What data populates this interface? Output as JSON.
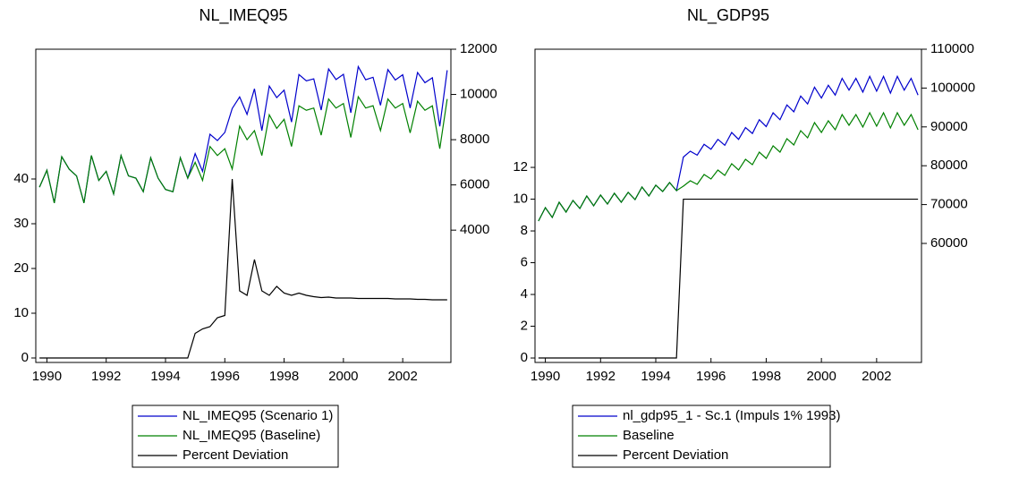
{
  "chart_data": [
    {
      "type": "line",
      "title": "NL_IMEQ95",
      "x": [
        1989.75,
        1990,
        1990.25,
        1990.5,
        1990.75,
        1991,
        1991.25,
        1991.5,
        1991.75,
        1992,
        1992.25,
        1992.5,
        1992.75,
        1993,
        1993.25,
        1993.5,
        1993.75,
        1994,
        1994.25,
        1994.5,
        1994.75,
        1995,
        1995.25,
        1995.5,
        1995.75,
        1996,
        1996.25,
        1996.5,
        1996.75,
        1997,
        1997.25,
        1997.5,
        1997.75,
        1998,
        1998.25,
        1998.5,
        1998.75,
        1999,
        1999.25,
        1999.5,
        1999.75,
        2000,
        2000.25,
        2000.5,
        2000.75,
        2001,
        2001.25,
        2001.5,
        2001.75,
        2002,
        2002.25,
        2002.5,
        2002.75,
        2003,
        2003.25,
        2003.5
      ],
      "xlim": [
        1989.625,
        2003.625
      ],
      "xticks": [
        1990,
        1992,
        1994,
        1996,
        1998,
        2000,
        2002
      ],
      "ylim": [
        -1,
        69
      ],
      "yticks": [
        0,
        10,
        20,
        30,
        40
      ],
      "y2lim": [
        -1850,
        12000
      ],
      "y2ticks": [
        4000,
        6000,
        8000,
        10000,
        12000
      ],
      "legend": "bottom",
      "series": [
        {
          "name": "NL_IMEQ95 (Scenario 1)",
          "color": "#0000cc",
          "axis": "y2",
          "values": [
            5900,
            6650,
            5200,
            7250,
            6700,
            6400,
            5200,
            7300,
            6200,
            6600,
            5600,
            7300,
            6400,
            6300,
            5700,
            7200,
            6300,
            5800,
            5700,
            7200,
            6300,
            7385,
            6600,
            8240,
            7960,
            8320,
            9380,
            9890,
            9120,
            10250,
            8400,
            10370,
            9860,
            10190,
            8780,
            10880,
            10600,
            10690,
            9310,
            11130,
            10660,
            10890,
            9190,
            11230,
            10650,
            10760,
            9520,
            11100,
            10640,
            10870,
            9400,
            10970,
            10520,
            10740,
            8590,
            11070
          ]
        },
        {
          "name": "NL_IMEQ95 (Baseline)",
          "color": "#008000",
          "axis": "y2",
          "values": [
            5900,
            6650,
            5200,
            7250,
            6700,
            6400,
            5200,
            7300,
            6200,
            6600,
            5600,
            7300,
            6400,
            6300,
            5700,
            7200,
            6300,
            5800,
            5700,
            7200,
            6300,
            7000,
            6200,
            7700,
            7300,
            7600,
            6700,
            8600,
            8000,
            8400,
            7300,
            9100,
            8500,
            8900,
            7700,
            9500,
            9300,
            9400,
            8200,
            9800,
            9400,
            9600,
            8100,
            9900,
            9400,
            9500,
            8400,
            9800,
            9400,
            9600,
            8300,
            9700,
            9300,
            9500,
            7600,
            9800
          ]
        },
        {
          "name": "Percent Deviation",
          "color": "#000000",
          "axis": "y",
          "values": [
            0,
            0,
            0,
            0,
            0,
            0,
            0,
            0,
            0,
            0,
            0,
            0,
            0,
            0,
            0,
            0,
            0,
            0,
            0,
            0,
            0,
            5.5,
            6.5,
            7,
            9,
            9.5,
            40,
            15,
            14,
            22,
            15,
            14,
            16,
            14.5,
            14,
            14.5,
            14,
            13.7,
            13.5,
            13.6,
            13.4,
            13.4,
            13.4,
            13.3,
            13.3,
            13.3,
            13.3,
            13.3,
            13.2,
            13.2,
            13.2,
            13.1,
            13.1,
            13,
            13,
            13
          ]
        }
      ]
    },
    {
      "type": "line",
      "title": "NL_GDP95",
      "x": [
        1989.75,
        1990,
        1990.25,
        1990.5,
        1990.75,
        1991,
        1991.25,
        1991.5,
        1991.75,
        1992,
        1992.25,
        1992.5,
        1992.75,
        1993,
        1993.25,
        1993.5,
        1993.75,
        1994,
        1994.25,
        1994.5,
        1994.75,
        1995,
        1995.25,
        1995.5,
        1995.75,
        1996,
        1996.25,
        1996.5,
        1996.75,
        1997,
        1997.25,
        1997.5,
        1997.75,
        1998,
        1998.25,
        1998.5,
        1998.75,
        1999,
        1999.25,
        1999.5,
        1999.75,
        2000,
        2000.25,
        2000.5,
        2000.75,
        2001,
        2001.25,
        2001.5,
        2001.75,
        2002,
        2002.25,
        2002.5,
        2002.75,
        2003,
        2003.25,
        2003.5
      ],
      "xlim": [
        1989.625,
        2003.625
      ],
      "xticks": [
        1990,
        1992,
        1994,
        1996,
        1998,
        2000,
        2002
      ],
      "ylim": [
        -0.28,
        19.44
      ],
      "yticks": [
        0,
        2,
        4,
        6,
        8,
        10,
        12
      ],
      "y2lim": [
        29350,
        110000
      ],
      "y2ticks": [
        60000,
        70000,
        80000,
        90000,
        100000,
        110000
      ],
      "legend": "bottom",
      "series": [
        {
          "name": "nl_gdp95_1 - Sc.1 (Impuls 1% 1993)",
          "color": "#0000cc",
          "axis": "y2",
          "values": [
            65760,
            69220,
            66690,
            70600,
            68070,
            71060,
            68990,
            72210,
            69680,
            72450,
            70140,
            72910,
            70600,
            73140,
            71290,
            74520,
            72210,
            74980,
            73370,
            75670,
            73600,
            82230,
            83740,
            82730,
            85510,
            84250,
            86790,
            85260,
            88560,
            86790,
            89830,
            88310,
            91850,
            90080,
            93630,
            91850,
            95660,
            93890,
            97930,
            95910,
            100220,
            97430,
            100730,
            98190,
            102500,
            99460,
            102500,
            98960,
            103000,
            99210,
            103000,
            98700,
            103000,
            99460,
            102500,
            98190
          ]
        },
        {
          "name": "Baseline",
          "color": "#008000",
          "axis": "y2",
          "values": [
            65760,
            69220,
            66690,
            70600,
            68070,
            71060,
            68990,
            72210,
            69680,
            72450,
            70140,
            72910,
            70600,
            73140,
            71290,
            74520,
            72210,
            74980,
            73370,
            75670,
            73600,
            74750,
            76130,
            75210,
            77740,
            76590,
            78900,
            77510,
            80510,
            78900,
            81660,
            80280,
            83500,
            81890,
            85120,
            83500,
            86960,
            85350,
            89030,
            87190,
            91110,
            88570,
            91570,
            89260,
            93180,
            90420,
            93180,
            89960,
            93640,
            90190,
            93640,
            89730,
            93640,
            90420,
            93180,
            89260
          ]
        },
        {
          "name": "Percent Deviation",
          "color": "#000000",
          "axis": "y",
          "values": [
            0,
            0,
            0,
            0,
            0,
            0,
            0,
            0,
            0,
            0,
            0,
            0,
            0,
            0,
            0,
            0,
            0,
            0,
            0,
            0,
            0,
            10,
            10,
            10,
            10,
            10,
            10,
            10,
            10,
            10,
            10,
            10,
            10,
            10,
            10,
            10,
            10,
            10,
            10,
            10,
            10,
            10,
            10,
            10,
            10,
            10,
            10,
            10,
            10,
            10,
            10,
            10,
            10,
            10,
            10,
            10
          ]
        }
      ]
    }
  ]
}
